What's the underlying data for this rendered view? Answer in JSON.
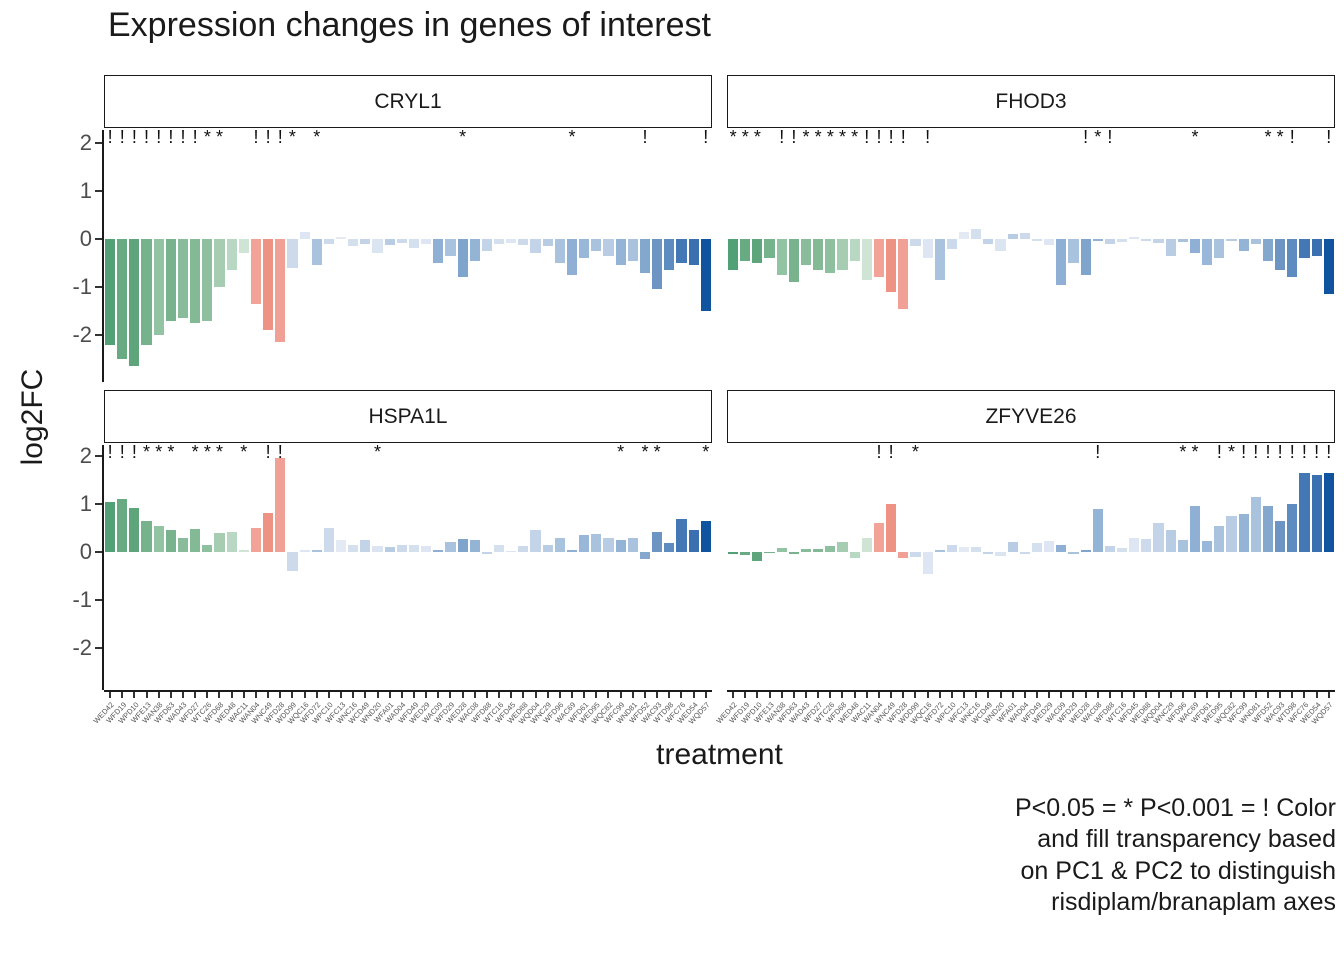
{
  "chart_data": {
    "type": "bar",
    "title": "Expression changes in genes of interest",
    "xlabel": "treatment",
    "ylabel": "log2FC",
    "yticks": [
      2,
      1,
      0,
      -1,
      -2
    ],
    "ylim": [
      -2.95,
      2.25
    ],
    "grid": false,
    "legend_position": "none",
    "caption": "P<0.05 = * P<0.001 = ! Color\nand fill transparency based\non PC1 & PC2 to distinguish\nrisdiplam/branaplam axes",
    "significance_legend": {
      "star": "P<0.05",
      "bang": "P<0.001"
    },
    "categories": [
      "WED42",
      "WFD19",
      "WPD10",
      "WFE13",
      "WAN38",
      "WFD63",
      "WAD43",
      "WFD27",
      "WTC26",
      "WFD68",
      "WED48",
      "WAC11",
      "WAN04",
      "WNC49",
      "WFD28",
      "WDD99",
      "WQC16",
      "WFD72",
      "WPC10",
      "WFC13",
      "WNC16",
      "WCD49",
      "WND20",
      "WFA01",
      "WAD04",
      "WFD49",
      "WED29",
      "WAC09",
      "WFD29",
      "WED28",
      "WAC08",
      "WFD88",
      "WTC16",
      "WFD45",
      "WED88",
      "WQD04",
      "WNC29",
      "WFD96",
      "WAC69",
      "WFD61",
      "WED95",
      "WQC82",
      "WFC99",
      "WND81",
      "WFD52",
      "WAC93",
      "WTD98",
      "WFC76",
      "WED54",
      "WQD57"
    ],
    "bar_colors": [
      "#52a075",
      "#68aa81",
      "#5fa57b",
      "#76b28c",
      "#92c3a3",
      "#79b38e",
      "#88bc9a",
      "#84b996",
      "#8ec09f",
      "#a6cdb2",
      "#b9d8c3",
      "#d0e4d5",
      "#f2a296",
      "#ee9283",
      "#f0a095",
      "#ccdaeb",
      "#dde6f2",
      "#a9c2de",
      "#ccdaeb",
      "#e3eaf4",
      "#d4e0ee",
      "#c4d4e8",
      "#dbe4f1",
      "#b8cce3",
      "#ccdaeb",
      "#d4e0ee",
      "#dde6f2",
      "#8fb0d4",
      "#a9c2de",
      "#7fa5cd",
      "#94b4d6",
      "#c4d4e8",
      "#d4e0ee",
      "#dde6f2",
      "#ccdaeb",
      "#c4d4e8",
      "#b8cce3",
      "#a9c2de",
      "#8fb0d4",
      "#99b7d8",
      "#a9c2de",
      "#b8cce3",
      "#94b4d6",
      "#a9c2de",
      "#84a7ce",
      "#6c95c4",
      "#5e8bc0",
      "#4478b5",
      "#3a70b0",
      "#10549f"
    ],
    "facets": [
      {
        "name": "CRYL1",
        "values": [
          -2.2,
          -2.5,
          -2.65,
          -2.2,
          -2.0,
          -1.7,
          -1.65,
          -1.75,
          -1.7,
          -1.0,
          -0.65,
          -0.3,
          -1.35,
          -1.9,
          -2.15,
          -0.6,
          0.15,
          -0.55,
          -0.1,
          0.05,
          -0.15,
          -0.1,
          -0.3,
          -0.12,
          -0.08,
          -0.18,
          -0.1,
          -0.5,
          -0.35,
          -0.8,
          -0.45,
          -0.25,
          -0.1,
          -0.08,
          -0.12,
          -0.3,
          -0.15,
          -0.5,
          -0.75,
          -0.4,
          -0.25,
          -0.35,
          -0.55,
          -0.45,
          -0.7,
          -1.05,
          -0.65,
          -0.5,
          -0.55,
          -1.5
        ],
        "significance": [
          "!",
          "!",
          "!",
          "!",
          "!",
          "!",
          "!",
          "!",
          "*",
          "*",
          "",
          "",
          "!",
          "!",
          "!",
          "*",
          "",
          "*",
          "",
          "",
          "",
          "",
          "",
          "",
          "",
          "",
          "",
          "",
          "",
          "*",
          "",
          "",
          "",
          "",
          "",
          "",
          "",
          "",
          "*",
          "",
          "",
          "",
          "",
          "",
          "!",
          "",
          "",
          "",
          "",
          "!"
        ]
      },
      {
        "name": "FHOD3",
        "values": [
          -0.65,
          -0.45,
          -0.5,
          -0.4,
          -0.75,
          -0.9,
          -0.55,
          -0.65,
          -0.7,
          -0.65,
          -0.45,
          -0.85,
          -0.8,
          -1.1,
          -1.45,
          -0.15,
          -0.4,
          -0.85,
          -0.2,
          0.15,
          0.2,
          -0.1,
          -0.25,
          0.1,
          0.12,
          -0.05,
          -0.12,
          -0.95,
          -0.5,
          -0.75,
          -0.05,
          -0.1,
          -0.06,
          0.05,
          -0.05,
          -0.08,
          -0.35,
          -0.06,
          -0.3,
          -0.55,
          -0.4,
          -0.05,
          -0.25,
          -0.1,
          -0.45,
          -0.65,
          -0.8,
          -0.4,
          -0.35,
          -1.15
        ],
        "significance": [
          "*",
          "*",
          "*",
          "",
          "!",
          "!",
          "*",
          "*",
          "*",
          "*",
          "*",
          "!",
          "!",
          "!",
          "!",
          "",
          "!",
          "",
          "",
          "",
          "",
          "",
          "",
          "",
          "",
          "",
          "",
          "",
          "",
          "!",
          "*",
          "!",
          "",
          "",
          "",
          "",
          "",
          "",
          "*",
          "",
          "",
          "",
          "",
          "",
          "*",
          "*",
          "!",
          "",
          "",
          "!"
        ]
      },
      {
        "name": "HSPA1L",
        "values": [
          1.05,
          1.1,
          0.92,
          0.65,
          0.55,
          0.45,
          0.3,
          0.48,
          0.15,
          0.4,
          0.42,
          0.05,
          0.5,
          0.82,
          1.95,
          -0.4,
          0.05,
          0.05,
          0.5,
          0.25,
          0.15,
          0.25,
          0.12,
          0.1,
          0.15,
          0.15,
          0.12,
          0.05,
          0.2,
          0.28,
          0.25,
          -0.05,
          0.15,
          0.02,
          0.12,
          0.45,
          0.15,
          0.3,
          0.05,
          0.35,
          0.38,
          0.3,
          0.25,
          0.3,
          -0.15,
          0.42,
          0.18,
          0.68,
          0.45,
          0.65
        ],
        "significance": [
          "!",
          "!",
          "!",
          "*",
          "*",
          "*",
          "",
          "*",
          "*",
          "*",
          "",
          "*",
          "",
          "!",
          "!",
          "",
          "",
          "",
          "",
          "",
          "",
          "",
          "*",
          "",
          "",
          "",
          "",
          "",
          "",
          "",
          "",
          "",
          "",
          "",
          "",
          "",
          "",
          "",
          "",
          "",
          "",
          "",
          "*",
          "",
          "*",
          "*",
          "",
          "",
          "",
          "*"
        ]
      },
      {
        "name": "ZFYVE26",
        "values": [
          -0.05,
          -0.06,
          -0.18,
          -0.03,
          0.08,
          -0.04,
          0.06,
          0.06,
          0.12,
          0.2,
          -0.12,
          0.3,
          0.6,
          1.0,
          -0.12,
          -0.1,
          -0.45,
          0.05,
          0.15,
          0.1,
          0.1,
          -0.05,
          -0.08,
          0.2,
          -0.05,
          0.18,
          0.22,
          0.15,
          -0.05,
          0.05,
          0.9,
          0.12,
          0.08,
          0.3,
          0.28,
          0.6,
          0.45,
          0.25,
          0.95,
          0.22,
          0.55,
          0.75,
          0.8,
          1.15,
          0.95,
          0.65,
          1.0,
          1.65,
          1.6,
          1.65
        ],
        "significance": [
          "",
          "",
          "",
          "",
          "",
          "",
          "",
          "",
          "",
          "",
          "",
          "",
          "!",
          "!",
          "",
          "*",
          "",
          "",
          "",
          "",
          "",
          "",
          "",
          "",
          "",
          "",
          "",
          "",
          "",
          "",
          "!",
          "",
          "",
          "",
          "",
          "",
          "",
          "*",
          "*",
          "",
          "!",
          "*",
          "!",
          "!",
          "!",
          "!",
          "!",
          "!",
          "!",
          "!"
        ]
      }
    ]
  }
}
